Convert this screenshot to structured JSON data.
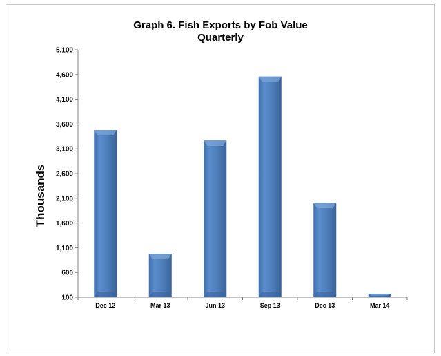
{
  "chart_data": {
    "type": "bar",
    "title": "Graph 6. Fish Exports by Fob Value",
    "subtitle": "Quarterly",
    "xlabel": "",
    "ylabel": "Thousands",
    "categories": [
      "Dec 12",
      "Mar 13",
      "Jun 13",
      "Sep 13",
      "Dec 13",
      "Mar 14"
    ],
    "series": [
      {
        "values": [
          3480,
          980,
          3270,
          4560,
          2010,
          170
        ]
      }
    ],
    "ylim": [
      100,
      5100
    ],
    "yticks": [
      "100",
      "600",
      "1,100",
      "1,600",
      "2,100",
      "2,600",
      "3,100",
      "3,600",
      "4,100",
      "4,600",
      "5,100"
    ],
    "ytick_values": [
      100,
      600,
      1100,
      1600,
      2100,
      2600,
      3100,
      3600,
      4100,
      4600,
      5100
    ],
    "grid": false,
    "legend": "none",
    "bar_color": "#4f81bd"
  }
}
